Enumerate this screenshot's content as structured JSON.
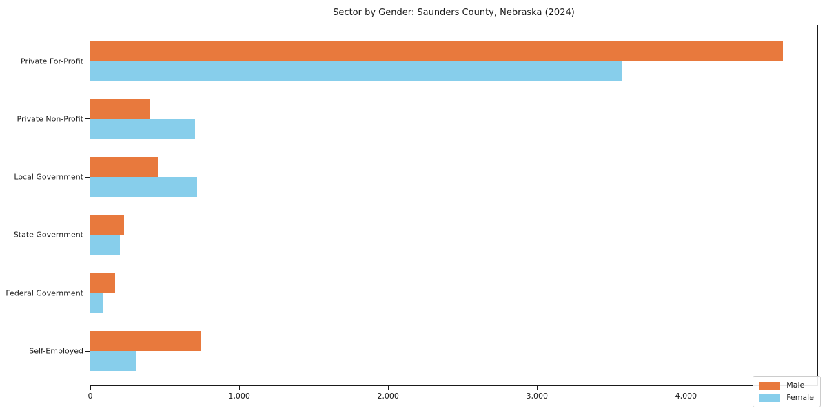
{
  "chart_data": {
    "type": "bar",
    "orientation": "horizontal",
    "title": "Sector by Gender: Saunders County, Nebraska (2024)",
    "categories": [
      "Private For-Profit",
      "Private Non-Profit",
      "Local Government",
      "State Government",
      "Federal Government",
      "Self-Employed"
    ],
    "series": [
      {
        "name": "Male",
        "color": "#E8793D",
        "values": [
          4650,
          397,
          453,
          226,
          165,
          744
        ]
      },
      {
        "name": "Female",
        "color": "#87CEEB",
        "values": [
          3570,
          702,
          716,
          199,
          89,
          308
        ]
      }
    ],
    "xlabel": "",
    "ylabel": "",
    "xlim": [
      0,
      4882
    ],
    "xticks": [
      0,
      1000,
      2000,
      3000,
      4000
    ],
    "xtick_labels": [
      "0",
      "1,000",
      "2,000",
      "3,000",
      "4,000"
    ],
    "legend_position": "lower right",
    "grid": false,
    "background_color": "#ffffff",
    "spine_color": "#1a1a1a"
  }
}
